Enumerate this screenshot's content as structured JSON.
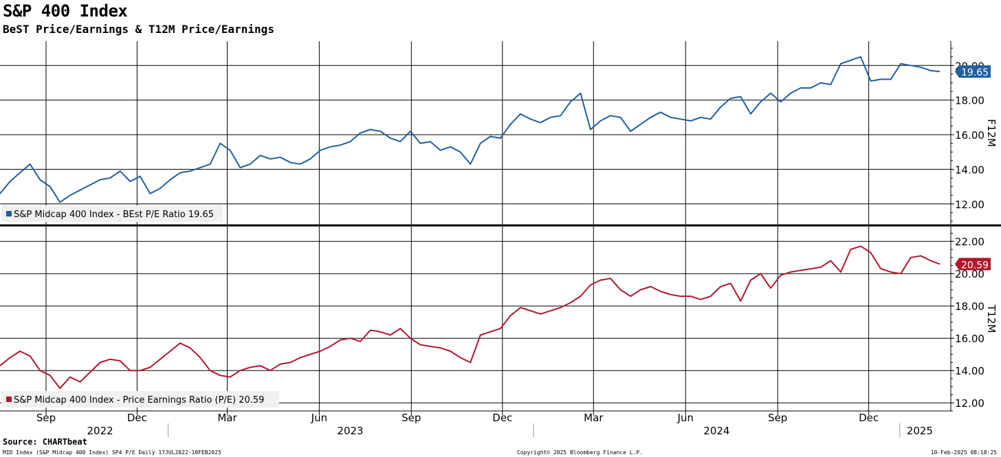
{
  "header": {
    "title": "S&P 400 Index",
    "subtitle": "BeST Price/Earnings & T12M Price/Earnings"
  },
  "footer": {
    "source": "Source: CHARTbeat",
    "left": "MID Index (S&P Midcap 400 Index) SP4 P/E  Daily 17JUL2022-10FEB2025",
    "center": "Copyright© 2025 Bloomberg Finance L.P.",
    "right": "10-Feb-2025 08:18:25"
  },
  "chart_data": {
    "type": "line",
    "x_axis": {
      "month_ticks": [
        "Sep",
        "Dec",
        "Mar",
        "Jun",
        "Sep",
        "Dec",
        "Mar",
        "Jun",
        "Sep",
        "Dec"
      ],
      "month_dates": [
        "2022-09-01",
        "2022-12-01",
        "2023-03-01",
        "2023-06-01",
        "2023-09-01",
        "2023-12-01",
        "2024-03-01",
        "2024-06-01",
        "2024-09-01",
        "2024-12-01"
      ],
      "years": [
        {
          "label": "2022",
          "center": "2022-10-25"
        },
        {
          "label": "2023",
          "center": "2023-07-02"
        },
        {
          "label": "2024",
          "center": "2024-07-02"
        },
        {
          "label": "2025",
          "center": "2025-01-21"
        }
      ],
      "year_boundaries": [
        "2023-01-01",
        "2024-01-01",
        "2025-01-01"
      ],
      "range": [
        "2022-07-17",
        "2025-02-10"
      ]
    },
    "panels": [
      {
        "axis_label": "F12M",
        "ylim": [
          10.8,
          21.4
        ],
        "yticks": [
          "12.00",
          "14.00",
          "16.00",
          "18.00",
          "20.00"
        ],
        "last_value": "19.65",
        "legend": "S&P Midcap 400 Index - BEst P/E Ratio 19.65",
        "color": "#1f5fa0",
        "series": {
          "name": "S&P Midcap 400 Index - BEst P/E Ratio",
          "x": [
            "2022-07-17",
            "2022-07-27",
            "2022-08-06",
            "2022-08-16",
            "2022-08-26",
            "2022-09-05",
            "2022-09-15",
            "2022-09-25",
            "2022-10-05",
            "2022-10-15",
            "2022-10-25",
            "2022-11-04",
            "2022-11-14",
            "2022-11-24",
            "2022-12-04",
            "2022-12-14",
            "2022-12-24",
            "2023-01-03",
            "2023-01-13",
            "2023-01-23",
            "2023-02-02",
            "2023-02-12",
            "2023-02-22",
            "2023-03-04",
            "2023-03-14",
            "2023-03-24",
            "2023-04-03",
            "2023-04-13",
            "2023-04-23",
            "2023-05-03",
            "2023-05-13",
            "2023-05-23",
            "2023-06-02",
            "2023-06-12",
            "2023-06-22",
            "2023-07-02",
            "2023-07-12",
            "2023-07-22",
            "2023-08-01",
            "2023-08-11",
            "2023-08-21",
            "2023-08-31",
            "2023-09-10",
            "2023-09-20",
            "2023-09-30",
            "2023-10-10",
            "2023-10-20",
            "2023-10-30",
            "2023-11-09",
            "2023-11-19",
            "2023-11-29",
            "2023-12-09",
            "2023-12-19",
            "2023-12-29",
            "2024-01-08",
            "2024-01-18",
            "2024-01-28",
            "2024-02-07",
            "2024-02-17",
            "2024-02-27",
            "2024-03-08",
            "2024-03-18",
            "2024-03-28",
            "2024-04-07",
            "2024-04-17",
            "2024-04-27",
            "2024-05-07",
            "2024-05-17",
            "2024-05-27",
            "2024-06-06",
            "2024-06-16",
            "2024-06-26",
            "2024-07-06",
            "2024-07-16",
            "2024-07-26",
            "2024-08-05",
            "2024-08-15",
            "2024-08-25",
            "2024-09-04",
            "2024-09-14",
            "2024-09-24",
            "2024-10-04",
            "2024-10-14",
            "2024-10-24",
            "2024-11-03",
            "2024-11-13",
            "2024-11-23",
            "2024-12-03",
            "2024-12-13",
            "2024-12-23",
            "2025-01-02",
            "2025-01-12",
            "2025-01-22",
            "2025-02-01",
            "2025-02-10"
          ],
          "values": [
            12.6,
            13.3,
            13.8,
            14.3,
            13.4,
            13.0,
            12.1,
            12.5,
            12.8,
            13.1,
            13.4,
            13.5,
            13.9,
            13.3,
            13.6,
            12.6,
            12.9,
            13.4,
            13.8,
            13.9,
            14.1,
            14.3,
            15.5,
            15.1,
            14.1,
            14.3,
            14.8,
            14.6,
            14.7,
            14.4,
            14.3,
            14.6,
            15.1,
            15.3,
            15.4,
            15.6,
            16.1,
            16.3,
            16.2,
            15.8,
            15.6,
            16.2,
            15.5,
            15.6,
            15.1,
            15.3,
            15.0,
            14.3,
            15.5,
            15.9,
            15.8,
            16.6,
            17.2,
            16.9,
            16.7,
            17.0,
            17.1,
            17.9,
            18.4,
            16.3,
            16.8,
            17.1,
            17.0,
            16.2,
            16.6,
            17.0,
            17.3,
            17.0,
            16.9,
            16.8,
            17.0,
            16.9,
            17.6,
            18.1,
            18.2,
            17.2,
            17.9,
            18.4,
            17.9,
            18.4,
            18.7,
            18.7,
            19.0,
            18.9,
            20.1,
            20.3,
            20.5,
            19.1,
            19.2,
            19.2,
            20.1,
            20.0,
            19.9,
            19.7,
            19.65
          ]
        }
      },
      {
        "axis_label": "T12M",
        "ylim": [
          11.5,
          22.9
        ],
        "yticks": [
          "12.00",
          "14.00",
          "16.00",
          "18.00",
          "20.00",
          "22.00"
        ],
        "last_value": "20.59",
        "legend": "S&P Midcap 400 Index - Price Earnings Ratio (P/E) 20.59",
        "color": "#b0182b",
        "series": {
          "name": "S&P Midcap 400 Index - Price Earnings Ratio (P/E)",
          "x": [
            "2022-07-17",
            "2022-07-27",
            "2022-08-06",
            "2022-08-16",
            "2022-08-26",
            "2022-09-05",
            "2022-09-15",
            "2022-09-25",
            "2022-10-05",
            "2022-10-15",
            "2022-10-25",
            "2022-11-04",
            "2022-11-14",
            "2022-11-24",
            "2022-12-04",
            "2022-12-14",
            "2022-12-24",
            "2023-01-03",
            "2023-01-13",
            "2023-01-23",
            "2023-02-02",
            "2023-02-12",
            "2023-02-22",
            "2023-03-04",
            "2023-03-14",
            "2023-03-24",
            "2023-04-03",
            "2023-04-13",
            "2023-04-23",
            "2023-05-03",
            "2023-05-13",
            "2023-05-23",
            "2023-06-02",
            "2023-06-12",
            "2023-06-22",
            "2023-07-02",
            "2023-07-12",
            "2023-07-22",
            "2023-08-01",
            "2023-08-11",
            "2023-08-21",
            "2023-08-31",
            "2023-09-10",
            "2023-09-20",
            "2023-09-30",
            "2023-10-10",
            "2023-10-20",
            "2023-10-30",
            "2023-11-09",
            "2023-11-19",
            "2023-11-29",
            "2023-12-09",
            "2023-12-19",
            "2023-12-29",
            "2024-01-08",
            "2024-01-18",
            "2024-01-28",
            "2024-02-07",
            "2024-02-17",
            "2024-02-27",
            "2024-03-08",
            "2024-03-18",
            "2024-03-28",
            "2024-04-07",
            "2024-04-17",
            "2024-04-27",
            "2024-05-07",
            "2024-05-17",
            "2024-05-27",
            "2024-06-06",
            "2024-06-16",
            "2024-06-26",
            "2024-07-06",
            "2024-07-16",
            "2024-07-26",
            "2024-08-05",
            "2024-08-15",
            "2024-08-25",
            "2024-09-04",
            "2024-09-14",
            "2024-09-24",
            "2024-10-04",
            "2024-10-14",
            "2024-10-24",
            "2024-11-03",
            "2024-11-13",
            "2024-11-23",
            "2024-12-03",
            "2024-12-13",
            "2024-12-23",
            "2025-01-02",
            "2025-01-12",
            "2025-01-22",
            "2025-02-01",
            "2025-02-10"
          ],
          "values": [
            14.3,
            14.8,
            15.2,
            14.9,
            14.0,
            13.7,
            12.9,
            13.6,
            13.3,
            13.9,
            14.5,
            14.7,
            14.6,
            14.0,
            14.0,
            14.2,
            14.7,
            15.2,
            15.7,
            15.4,
            14.8,
            14.0,
            13.7,
            13.6,
            14.0,
            14.2,
            14.3,
            14.0,
            14.4,
            14.5,
            14.8,
            15.0,
            15.2,
            15.5,
            15.9,
            16.0,
            15.8,
            16.5,
            16.4,
            16.2,
            16.6,
            16.0,
            15.6,
            15.5,
            15.4,
            15.2,
            14.8,
            14.5,
            16.2,
            16.4,
            16.6,
            17.4,
            17.9,
            17.7,
            17.5,
            17.7,
            17.9,
            18.2,
            18.6,
            19.3,
            19.6,
            19.7,
            19.0,
            18.6,
            19.0,
            19.2,
            18.9,
            18.7,
            18.6,
            18.6,
            18.4,
            18.6,
            19.2,
            19.4,
            18.3,
            19.6,
            20.0,
            19.1,
            19.9,
            20.1,
            20.2,
            20.3,
            20.4,
            20.8,
            20.1,
            21.5,
            21.7,
            21.3,
            20.3,
            20.1,
            20.0,
            21.0,
            21.1,
            20.8,
            20.59
          ]
        }
      }
    ]
  }
}
